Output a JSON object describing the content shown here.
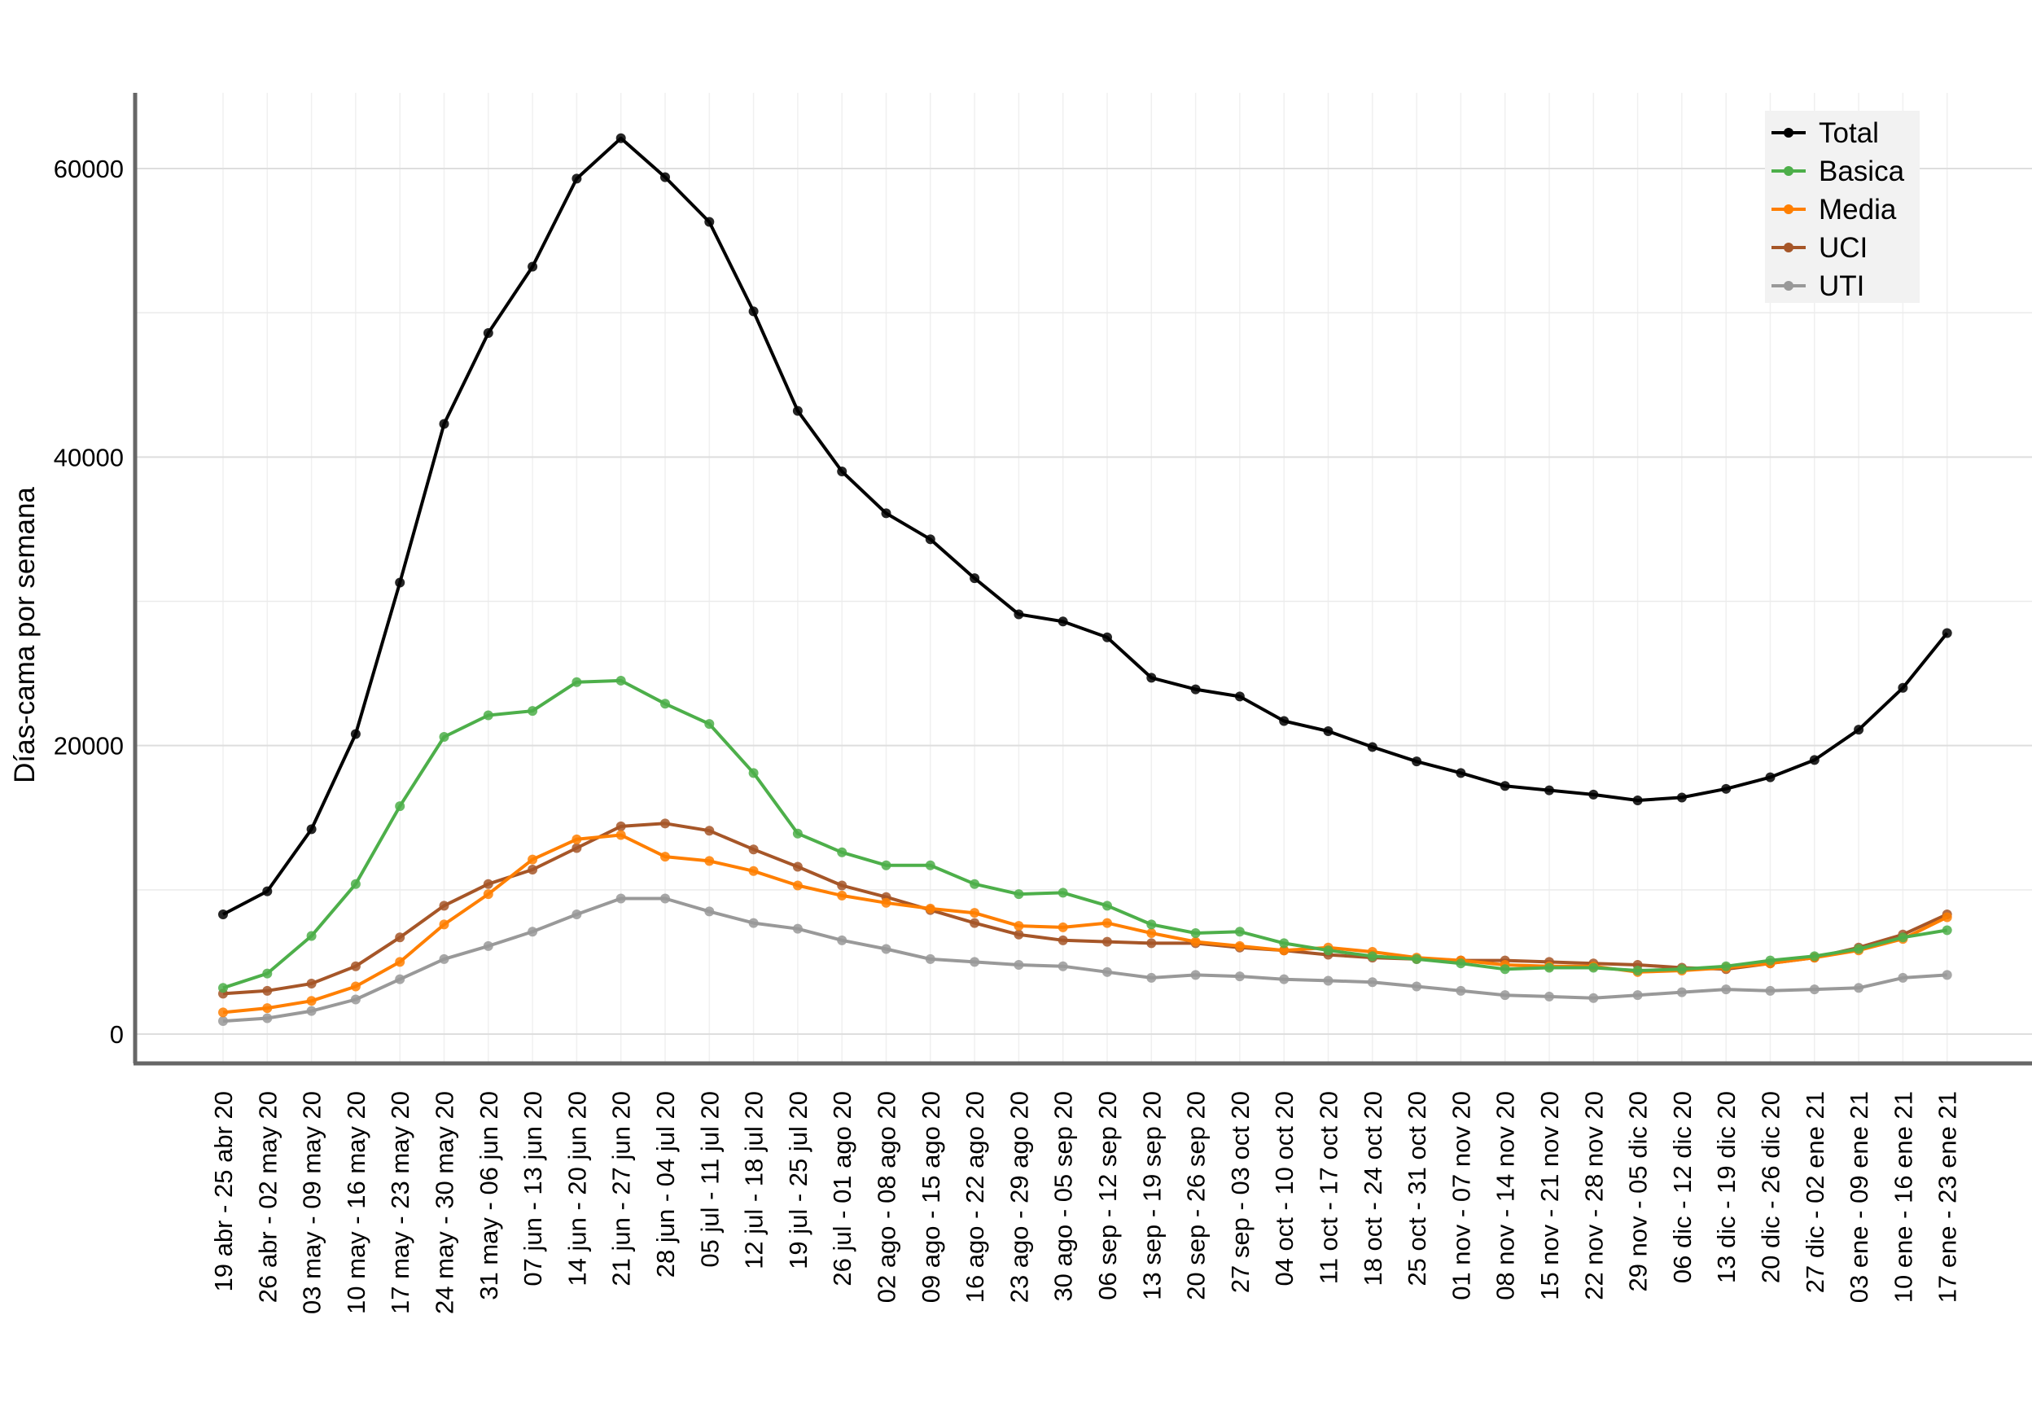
{
  "chart_data": {
    "type": "line",
    "title": "",
    "xlabel": "",
    "ylabel": "Días-cama por semana",
    "ylim": [
      -2000,
      65000
    ],
    "yticks": [
      0,
      20000,
      40000,
      60000
    ],
    "ytick_labels": [
      "0",
      "20000",
      "40000",
      "60000"
    ],
    "grid": true,
    "legend_position": "top-right",
    "categories": [
      "19 abr - 25 abr 20",
      "26 abr - 02 may 20",
      "03 may - 09 may 20",
      "10 may - 16 may 20",
      "17 may - 23 may 20",
      "24 may - 30 may 20",
      "31 may - 06 jun 20",
      "07 jun - 13 jun 20",
      "14 jun - 20 jun 20",
      "21 jun - 27 jun 20",
      "28 jun - 04 jul 20",
      "05 jul - 11 jul 20",
      "12 jul - 18 jul 20",
      "19 jul - 25 jul 20",
      "26 jul - 01 ago 20",
      "02 ago - 08 ago 20",
      "09 ago - 15 ago 20",
      "16 ago - 22 ago 20",
      "23 ago - 29 ago 20",
      "30 ago - 05 sep 20",
      "06 sep - 12 sep 20",
      "13 sep - 19 sep 20",
      "20 sep - 26 sep 20",
      "27 sep - 03 oct 20",
      "04 oct - 10 oct 20",
      "11 oct - 17 oct 20",
      "18 oct - 24 oct 20",
      "25 oct - 31 oct 20",
      "01 nov - 07 nov 20",
      "08 nov - 14 nov 20",
      "15 nov - 21 nov 20",
      "22 nov - 28 nov 20",
      "29 nov - 05 dic 20",
      "06 dic - 12 dic 20",
      "13 dic - 19 dic 20",
      "20 dic - 26 dic 20",
      "27 dic - 02 ene 21",
      "03 ene - 09 ene 21",
      "10 ene - 16 ene 21",
      "17 ene - 23 ene 21"
    ],
    "series": [
      {
        "name": "Total",
        "color": "#000000",
        "values": [
          8300,
          9900,
          14200,
          20800,
          31300,
          42300,
          48600,
          53200,
          59300,
          62100,
          59400,
          56300,
          50100,
          43200,
          39000,
          36100,
          34300,
          31600,
          29100,
          28600,
          27500,
          24700,
          23900,
          23400,
          21700,
          21000,
          19900,
          18900,
          18100,
          17200,
          16900,
          16600,
          16200,
          16400,
          17000,
          17800,
          19000,
          21100,
          24000,
          27800
        ]
      },
      {
        "name": "Basica",
        "color": "#4daf4a",
        "values": [
          3200,
          4200,
          6800,
          10400,
          15800,
          20600,
          22100,
          22400,
          24400,
          24500,
          22900,
          21500,
          18100,
          13900,
          12600,
          11700,
          11700,
          10400,
          9700,
          9800,
          8900,
          7600,
          7000,
          7100,
          6300,
          5800,
          5400,
          5200,
          4900,
          4500,
          4600,
          4600,
          4400,
          4500,
          4700,
          5100,
          5400,
          5900,
          6700,
          7200
        ]
      },
      {
        "name": "Media",
        "color": "#ff7f00",
        "values": [
          1500,
          1800,
          2300,
          3300,
          5000,
          7600,
          9700,
          12100,
          13500,
          13800,
          12300,
          12000,
          11300,
          10300,
          9600,
          9100,
          8700,
          8400,
          7500,
          7400,
          7700,
          7000,
          6400,
          6100,
          5800,
          6000,
          5700,
          5300,
          5100,
          4800,
          4700,
          4700,
          4300,
          4400,
          4600,
          4900,
          5300,
          5800,
          6600,
          8100
        ]
      },
      {
        "name": "UCI",
        "color": "#a65628",
        "values": [
          2800,
          3000,
          3500,
          4700,
          6700,
          8900,
          10400,
          11400,
          12900,
          14400,
          14600,
          14100,
          12800,
          11600,
          10300,
          9500,
          8600,
          7700,
          6900,
          6500,
          6400,
          6300,
          6300,
          6000,
          5800,
          5500,
          5300,
          5200,
          5100,
          5100,
          5000,
          4900,
          4800,
          4600,
          4500,
          4900,
          5300,
          6000,
          6900,
          8300
        ]
      },
      {
        "name": "UTI",
        "color": "#999999",
        "values": [
          900,
          1100,
          1600,
          2400,
          3800,
          5200,
          6100,
          7100,
          8300,
          9400,
          9400,
          8500,
          7700,
          7300,
          6500,
          5900,
          5200,
          5000,
          4800,
          4700,
          4300,
          3900,
          4100,
          4000,
          3800,
          3700,
          3600,
          3300,
          3000,
          2700,
          2600,
          2500,
          2700,
          2900,
          3100,
          3000,
          3100,
          3200,
          3900,
          4100
        ]
      }
    ]
  }
}
